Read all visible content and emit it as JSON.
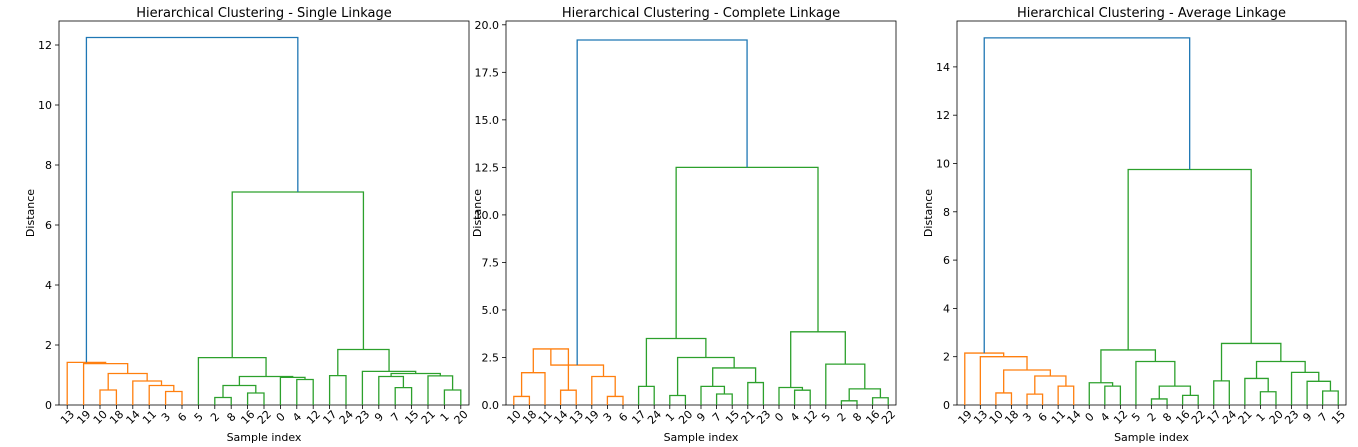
{
  "colors": {
    "cluster_a": "#ff7f0e",
    "cluster_b": "#2ca02c",
    "root": "#1f77b4"
  },
  "chart_data": [
    {
      "type": "dendrogram",
      "title": "Hierarchical Clustering - Single Linkage",
      "xlabel": "Sample index",
      "ylabel": "Distance",
      "ylim": [
        0,
        12.8
      ],
      "yticks": [
        0,
        2,
        4,
        6,
        8,
        10,
        12
      ],
      "leaves": [
        "13",
        "19",
        "10",
        "18",
        "14",
        "11",
        "3",
        "6",
        "5",
        "2",
        "8",
        "16",
        "22",
        "0",
        "4",
        "12",
        "17",
        "24",
        "23",
        "9",
        "7",
        "15",
        "21",
        "1",
        "20"
      ],
      "links": [
        {
          "a": "L10",
          "b": "L18",
          "h": 0.5,
          "color": "cluster_a",
          "id": "a1"
        },
        {
          "a": "L3",
          "b": "L6",
          "h": 0.45,
          "color": "cluster_a",
          "id": "a2"
        },
        {
          "a": "L11",
          "b": "a2",
          "h": 0.65,
          "color": "cluster_a",
          "id": "a3"
        },
        {
          "a": "L14",
          "b": "a3",
          "h": 0.8,
          "color": "cluster_a",
          "id": "a4"
        },
        {
          "a": "a1",
          "b": "a4",
          "h": 1.05,
          "color": "cluster_a",
          "id": "a5"
        },
        {
          "a": "L19",
          "b": "a5",
          "h": 1.38,
          "color": "cluster_a",
          "id": "a6"
        },
        {
          "a": "L13",
          "b": "a6",
          "h": 1.42,
          "color": "cluster_a",
          "id": "a7"
        },
        {
          "a": "L2",
          "b": "L8",
          "h": 0.25,
          "color": "cluster_b",
          "id": "b1"
        },
        {
          "a": "L16",
          "b": "L22",
          "h": 0.4,
          "color": "cluster_b",
          "id": "b2"
        },
        {
          "a": "b1",
          "b": "b2",
          "h": 0.65,
          "color": "cluster_b",
          "id": "b3"
        },
        {
          "a": "L4",
          "b": "L12",
          "h": 0.85,
          "color": "cluster_b",
          "id": "b4"
        },
        {
          "a": "L0",
          "b": "b4",
          "h": 0.92,
          "color": "cluster_b",
          "id": "b5"
        },
        {
          "a": "b3",
          "b": "b5",
          "h": 0.95,
          "color": "cluster_b",
          "id": "b6"
        },
        {
          "a": "L5",
          "b": "b6",
          "h": 1.58,
          "color": "cluster_b",
          "id": "b7"
        },
        {
          "a": "L17",
          "b": "L24",
          "h": 0.98,
          "color": "cluster_b",
          "id": "b8"
        },
        {
          "a": "L7",
          "b": "L15",
          "h": 0.58,
          "color": "cluster_b",
          "id": "b9"
        },
        {
          "a": "L9",
          "b": "b9",
          "h": 0.95,
          "color": "cluster_b",
          "id": "b10"
        },
        {
          "a": "L1",
          "b": "L20",
          "h": 0.5,
          "color": "cluster_b",
          "id": "b11"
        },
        {
          "a": "L21",
          "b": "b11",
          "h": 0.97,
          "color": "cluster_b",
          "id": "b12"
        },
        {
          "a": "b10",
          "b": "b12",
          "h": 1.05,
          "color": "cluster_b",
          "id": "b13"
        },
        {
          "a": "L23",
          "b": "b13",
          "h": 1.12,
          "color": "cluster_b",
          "id": "b14"
        },
        {
          "a": "b8",
          "b": "b14",
          "h": 1.85,
          "color": "cluster_b",
          "id": "b15"
        },
        {
          "a": "b7",
          "b": "b15",
          "h": 7.1,
          "color": "cluster_b",
          "id": "b16"
        },
        {
          "a": "a7",
          "b": "b16",
          "h": 12.25,
          "color": "root",
          "id": "r1"
        }
      ]
    },
    {
      "type": "dendrogram",
      "title": "Hierarchical Clustering - Complete Linkage",
      "xlabel": "Sample index",
      "ylabel": "Distance",
      "ylim": [
        0,
        20.2
      ],
      "yticks": [
        "0.0",
        "2.5",
        "5.0",
        "7.5",
        "10.0",
        "12.5",
        "15.0",
        "17.5",
        "20.0"
      ],
      "leaves": [
        "10",
        "18",
        "11",
        "14",
        "13",
        "19",
        "3",
        "6",
        "17",
        "24",
        "1",
        "20",
        "9",
        "7",
        "15",
        "21",
        "23",
        "0",
        "4",
        "12",
        "5",
        "2",
        "8",
        "16",
        "22"
      ],
      "links": [
        {
          "a": "L10",
          "b": "L18",
          "h": 0.45,
          "color": "cluster_a",
          "id": "a1"
        },
        {
          "a": "a1",
          "b": "L11",
          "h": 1.7,
          "color": "cluster_a",
          "id": "a2"
        },
        {
          "a": "L14",
          "b": "L13",
          "h": 0.78,
          "color": "cluster_a",
          "id": "a3"
        },
        {
          "a": "a2",
          "b": "a3",
          "h": 2.95,
          "color": "cluster_a",
          "id": "a4"
        },
        {
          "a": "L3",
          "b": "L6",
          "h": 0.45,
          "color": "cluster_a",
          "id": "a5"
        },
        {
          "a": "L19",
          "b": "a5",
          "h": 1.5,
          "color": "cluster_a",
          "id": "a6"
        },
        {
          "a": "a4",
          "b": "a6",
          "h": 2.1,
          "color": "cluster_a",
          "id": "a7"
        },
        {
          "a": "L17",
          "b": "L24",
          "h": 0.98,
          "color": "cluster_b",
          "id": "b1"
        },
        {
          "a": "L1",
          "b": "L20",
          "h": 0.5,
          "color": "cluster_b",
          "id": "b2"
        },
        {
          "a": "L7",
          "b": "L15",
          "h": 0.58,
          "color": "cluster_b",
          "id": "b3"
        },
        {
          "a": "L9",
          "b": "b3",
          "h": 0.98,
          "color": "cluster_b",
          "id": "b4"
        },
        {
          "a": "L21",
          "b": "L23",
          "h": 1.18,
          "color": "cluster_b",
          "id": "b5"
        },
        {
          "a": "b4",
          "b": "b5",
          "h": 1.95,
          "color": "cluster_b",
          "id": "b6"
        },
        {
          "a": "b2",
          "b": "b6",
          "h": 2.5,
          "color": "cluster_b",
          "id": "b7"
        },
        {
          "a": "b1",
          "b": "b7",
          "h": 3.5,
          "color": "cluster_b",
          "id": "b8"
        },
        {
          "a": "L4",
          "b": "L12",
          "h": 0.78,
          "color": "cluster_b",
          "id": "b9"
        },
        {
          "a": "L0",
          "b": "b9",
          "h": 0.92,
          "color": "cluster_b",
          "id": "b10"
        },
        {
          "a": "L2",
          "b": "L8",
          "h": 0.22,
          "color": "cluster_b",
          "id": "b11"
        },
        {
          "a": "L16",
          "b": "L22",
          "h": 0.38,
          "color": "cluster_b",
          "id": "b12"
        },
        {
          "a": "b11",
          "b": "b12",
          "h": 0.85,
          "color": "cluster_b",
          "id": "b13"
        },
        {
          "a": "L5",
          "b": "b13",
          "h": 2.15,
          "color": "cluster_b",
          "id": "b14"
        },
        {
          "a": "b10",
          "b": "b14",
          "h": 3.85,
          "color": "cluster_b",
          "id": "b15"
        },
        {
          "a": "b8",
          "b": "b15",
          "h": 12.5,
          "color": "cluster_b",
          "id": "b16"
        },
        {
          "a": "a7",
          "b": "b16",
          "h": 19.2,
          "color": "root",
          "id": "r1"
        }
      ]
    },
    {
      "type": "dendrogram",
      "title": "Hierarchical Clustering - Average Linkage",
      "xlabel": "Sample index",
      "ylabel": "Distance",
      "ylim": [
        0,
        15.9
      ],
      "yticks": [
        0,
        2,
        4,
        6,
        8,
        10,
        12,
        14
      ],
      "leaves": [
        "19",
        "13",
        "10",
        "18",
        "3",
        "6",
        "11",
        "14",
        "0",
        "4",
        "12",
        "5",
        "2",
        "8",
        "16",
        "22",
        "17",
        "24",
        "21",
        "1",
        "20",
        "23",
        "9",
        "7",
        "15"
      ],
      "links": [
        {
          "a": "L10",
          "b": "L18",
          "h": 0.5,
          "color": "cluster_a",
          "id": "a1"
        },
        {
          "a": "L3",
          "b": "L6",
          "h": 0.45,
          "color": "cluster_a",
          "id": "a2"
        },
        {
          "a": "L14",
          "b": "L11",
          "h": 0.78,
          "color": "cluster_a",
          "id": "a3"
        },
        {
          "a": "a2",
          "b": "a3",
          "h": 1.2,
          "color": "cluster_a",
          "id": "a4"
        },
        {
          "a": "a1",
          "b": "a4",
          "h": 1.45,
          "color": "cluster_a",
          "id": "a5"
        },
        {
          "a": "L13",
          "b": "a5",
          "h": 2.0,
          "color": "cluster_a",
          "id": "a6"
        },
        {
          "a": "L19",
          "b": "a6",
          "h": 2.15,
          "color": "cluster_a",
          "id": "a7"
        },
        {
          "a": "L4",
          "b": "L12",
          "h": 0.78,
          "color": "cluster_b",
          "id": "b1"
        },
        {
          "a": "L0",
          "b": "b1",
          "h": 0.92,
          "color": "cluster_b",
          "id": "b2"
        },
        {
          "a": "L2",
          "b": "L8",
          "h": 0.25,
          "color": "cluster_b",
          "id": "b3"
        },
        {
          "a": "L16",
          "b": "L22",
          "h": 0.4,
          "color": "cluster_b",
          "id": "b4"
        },
        {
          "a": "b3",
          "b": "b4",
          "h": 0.78,
          "color": "cluster_b",
          "id": "b5"
        },
        {
          "a": "L5",
          "b": "b5",
          "h": 1.8,
          "color": "cluster_b",
          "id": "b6"
        },
        {
          "a": "b2",
          "b": "b6",
          "h": 2.28,
          "color": "cluster_b",
          "id": "b7"
        },
        {
          "a": "L17",
          "b": "L24",
          "h": 1.0,
          "color": "cluster_b",
          "id": "b8"
        },
        {
          "a": "L1",
          "b": "L20",
          "h": 0.55,
          "color": "cluster_b",
          "id": "b9"
        },
        {
          "a": "L21",
          "b": "b9",
          "h": 1.1,
          "color": "cluster_b",
          "id": "b10"
        },
        {
          "a": "L7",
          "b": "L15",
          "h": 0.58,
          "color": "cluster_b",
          "id": "b11"
        },
        {
          "a": "L9",
          "b": "b11",
          "h": 0.98,
          "color": "cluster_b",
          "id": "b12"
        },
        {
          "a": "L23",
          "b": "b12",
          "h": 1.35,
          "color": "cluster_b",
          "id": "b13"
        },
        {
          "a": "b10",
          "b": "b13",
          "h": 1.8,
          "color": "cluster_b",
          "id": "b14"
        },
        {
          "a": "b8",
          "b": "b14",
          "h": 2.55,
          "color": "cluster_b",
          "id": "b15"
        },
        {
          "a": "b7",
          "b": "b15",
          "h": 9.75,
          "color": "cluster_b",
          "id": "b16"
        },
        {
          "a": "a7",
          "b": "b16",
          "h": 15.2,
          "color": "root",
          "id": "r1"
        }
      ]
    }
  ]
}
